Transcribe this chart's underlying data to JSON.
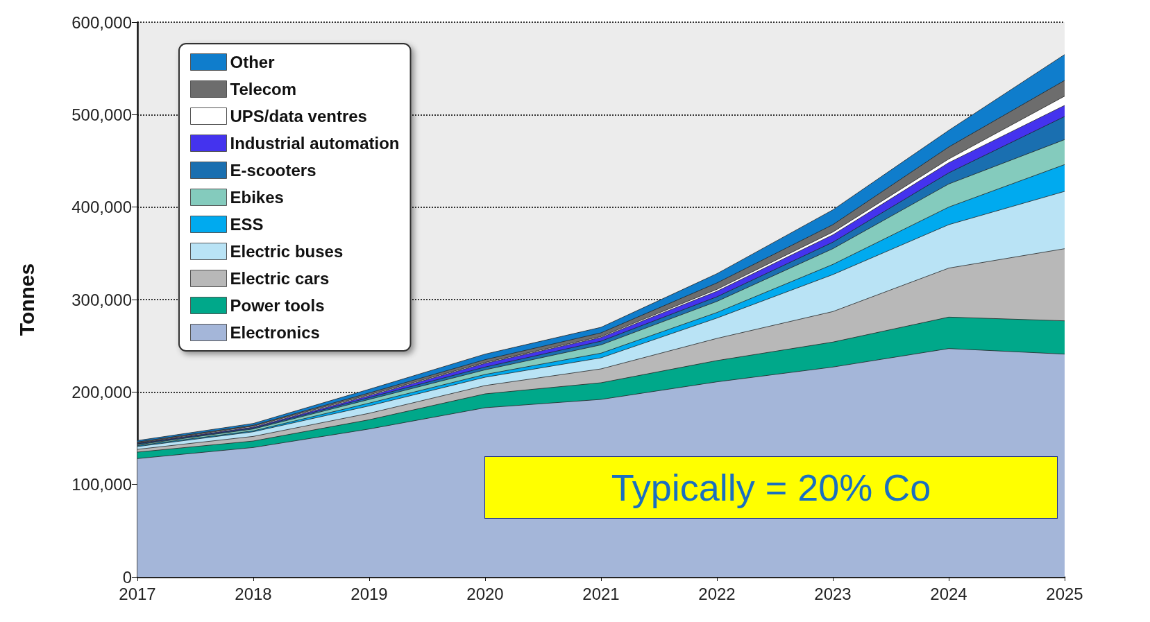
{
  "chart_data": {
    "type": "area",
    "stacked": true,
    "ylabel": "Tonnes",
    "x": [
      2017,
      2018,
      2019,
      2020,
      2021,
      2022,
      2023,
      2024,
      2025
    ],
    "xlim": [
      2017,
      2025
    ],
    "xticks": [
      2017,
      2018,
      2019,
      2020,
      2021,
      2022,
      2023,
      2024,
      2025
    ],
    "ylim": [
      0,
      600000
    ],
    "yticks": [
      {
        "value": 0,
        "label": "0"
      },
      {
        "value": 100000,
        "label": "100,000"
      },
      {
        "value": 200000,
        "label": "200,000"
      },
      {
        "value": 300000,
        "label": "300,000"
      },
      {
        "value": 400000,
        "label": "400,000"
      },
      {
        "value": 500000,
        "label": "500,000"
      },
      {
        "value": 600000,
        "label": "600,000"
      }
    ],
    "grid": "y",
    "legend": "top left",
    "marker": "none",
    "annotations": [
      "Typically = 20% Co"
    ],
    "series": [
      {
        "name": "Electronics",
        "color": "#a4b6d9",
        "values": [
          128000,
          140000,
          160000,
          183000,
          192000,
          211000,
          227000,
          247000,
          241000
        ]
      },
      {
        "name": "Power tools",
        "color": "#00a88a",
        "values": [
          7000,
          7000,
          10000,
          15000,
          18000,
          23000,
          27000,
          34000,
          36000
        ]
      },
      {
        "name": "Electric cars",
        "color": "#b8b8b8",
        "values": [
          3000,
          5000,
          7000,
          9000,
          15000,
          24000,
          33000,
          53000,
          78000
        ]
      },
      {
        "name": "Electric buses",
        "color": "#b9e3f5",
        "values": [
          3000,
          5000,
          8000,
          9000,
          12000,
          22000,
          40000,
          47000,
          62000
        ]
      },
      {
        "name": "ESS",
        "color": "#00aaef",
        "values": [
          1000,
          1000,
          3000,
          3000,
          5000,
          6000,
          11000,
          19000,
          29000
        ]
      },
      {
        "name": "Ebikes",
        "color": "#84cbbd",
        "values": [
          1000,
          2000,
          4000,
          5000,
          9000,
          12000,
          17000,
          25000,
          27000
        ]
      },
      {
        "name": "E-scooters",
        "color": "#1a6fb0",
        "values": [
          1000,
          1000,
          2000,
          3000,
          4000,
          5000,
          7000,
          12000,
          25000
        ]
      },
      {
        "name": "Industrial automation",
        "color": "#4433ee",
        "values": [
          500,
          1000,
          2000,
          4000,
          4000,
          6000,
          8000,
          11000,
          12000
        ]
      },
      {
        "name": "UPS/data ventres",
        "color": "#ffffff",
        "values": [
          500,
          1000,
          1000,
          1000,
          1000,
          2000,
          3000,
          4000,
          10000
        ]
      },
      {
        "name": "Telecom",
        "color": "#6d6d6d",
        "values": [
          1000,
          1000,
          2000,
          3000,
          4000,
          7000,
          8000,
          13000,
          17000
        ]
      },
      {
        "name": "Other",
        "color": "#0f7dcc",
        "values": [
          1500,
          2000,
          4000,
          6000,
          6000,
          10000,
          16000,
          18000,
          28000
        ]
      }
    ]
  }
}
